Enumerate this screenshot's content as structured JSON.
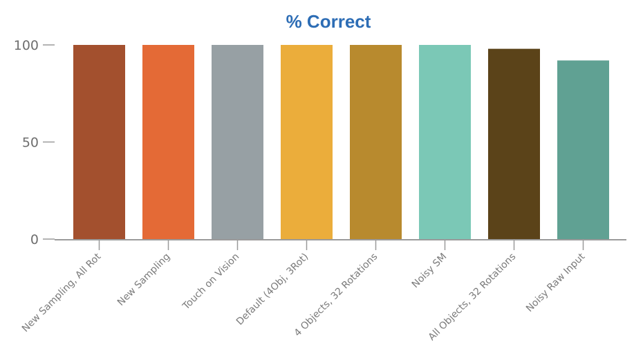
{
  "chart_data": {
    "type": "bar",
    "title": "% Correct",
    "xlabel": "",
    "ylabel": "",
    "ylim": [
      0,
      100
    ],
    "yticks": [
      0,
      50,
      100
    ],
    "grid": false,
    "categories": [
      "New Sampling, All Rot",
      "New Sampling",
      "Touch on Vision",
      "Default (4Obj, 3Rot)",
      "4 Objects, 32 Rotations",
      "Noisy SM",
      "All Objects, 32 Rotations",
      "Noisy Raw Input"
    ],
    "values": [
      100,
      100,
      100,
      100,
      100,
      100,
      98,
      92
    ],
    "colors": [
      "#a3502e",
      "#e46a36",
      "#97a0a4",
      "#ebad3b",
      "#b88a2e",
      "#7bc8b6",
      "#5b4319",
      "#60a193"
    ],
    "title_color": "#2d6db5"
  }
}
